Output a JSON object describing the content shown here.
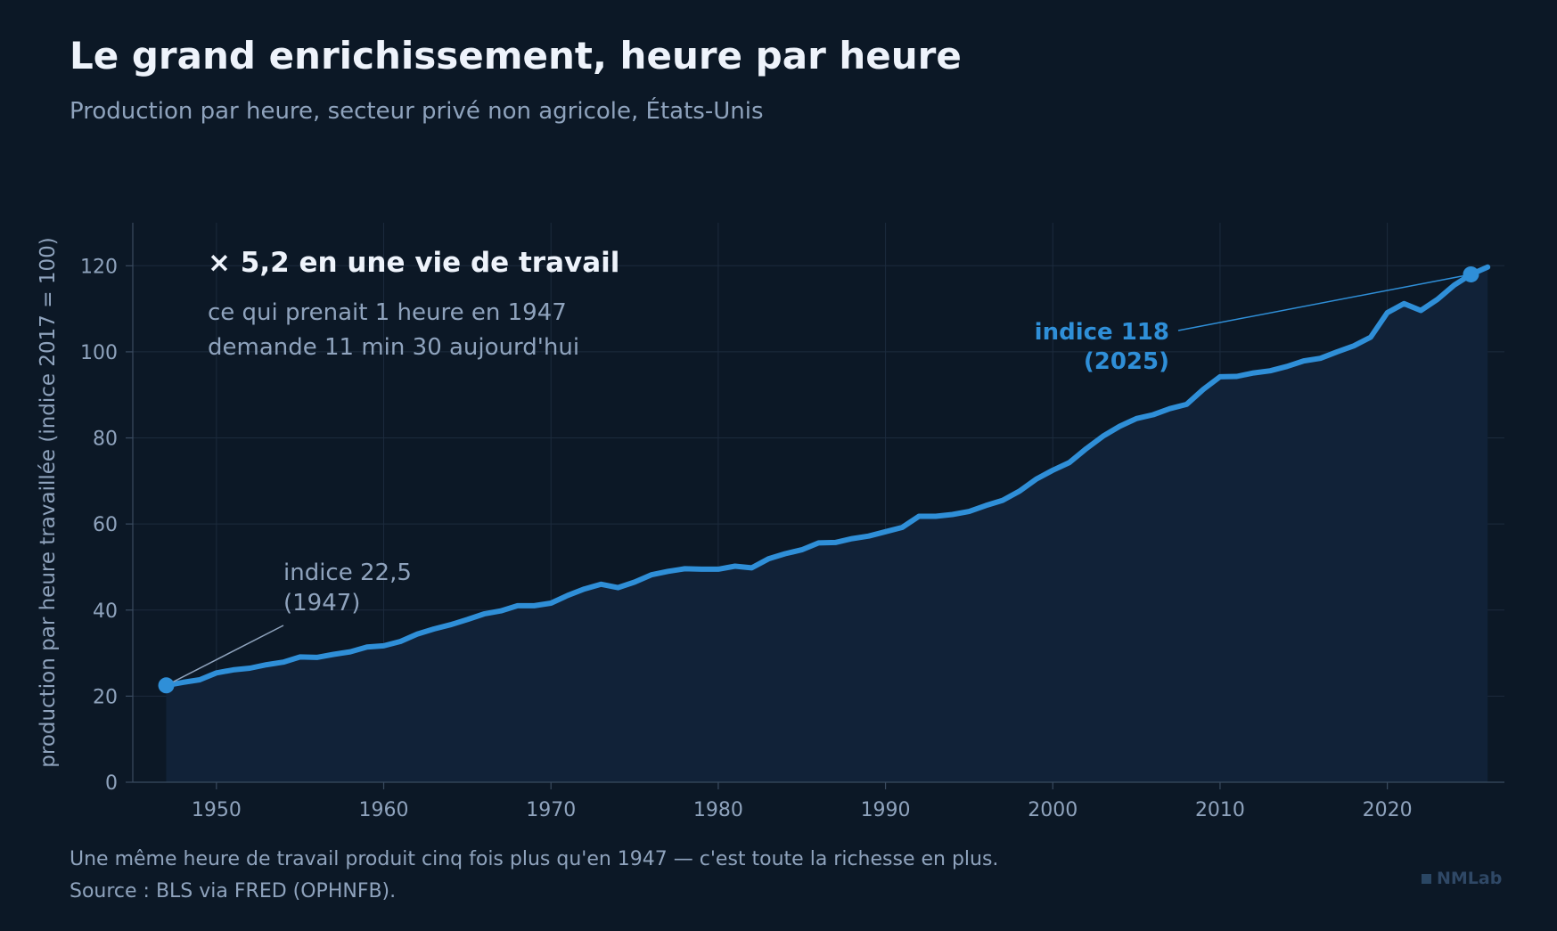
{
  "title": "Le grand enrichissement, heure par heure",
  "subtitle": "Production par heure, secteur privé non agricole, États-Unis",
  "notes": {
    "line1": "Une même heure de travail produit cinq fois plus qu'en 1947 — c'est toute la richesse en plus.",
    "line2": "Source : BLS via FRED (OPHNFB)."
  },
  "brand": "NMLab",
  "colors": {
    "background": "#0c1826",
    "line": "#2f8fd8",
    "area": "#112238",
    "grid": "#1c2b3d",
    "text_muted": "#8fa3bd",
    "text_bright": "#eef3fb"
  },
  "chart_data": {
    "type": "area",
    "ylabel": "production par heure travaillée (indice 2017 = 100)",
    "xlim": [
      1945,
      2027
    ],
    "ylim": [
      0,
      130
    ],
    "xticks": [
      1950,
      1960,
      1970,
      1980,
      1990,
      2000,
      2010,
      2020
    ],
    "yticks": [
      0,
      20,
      40,
      60,
      80,
      100,
      120
    ],
    "grid": true,
    "x": [
      1947,
      1948,
      1949,
      1950,
      1951,
      1952,
      1953,
      1954,
      1955,
      1956,
      1957,
      1958,
      1959,
      1960,
      1961,
      1962,
      1963,
      1964,
      1965,
      1966,
      1967,
      1968,
      1969,
      1970,
      1971,
      1972,
      1973,
      1974,
      1975,
      1976,
      1977,
      1978,
      1979,
      1980,
      1981,
      1982,
      1983,
      1984,
      1985,
      1986,
      1987,
      1988,
      1989,
      1990,
      1991,
      1992,
      1993,
      1994,
      1995,
      1996,
      1997,
      1998,
      1999,
      2000,
      2001,
      2002,
      2003,
      2004,
      2005,
      2006,
      2007,
      2008,
      2009,
      2010,
      2011,
      2012,
      2013,
      2014,
      2015,
      2016,
      2017,
      2018,
      2019,
      2020,
      2021,
      2022,
      2023,
      2024,
      2025,
      2026
    ],
    "values": [
      22.5,
      23.2,
      23.8,
      25.4,
      26.1,
      26.5,
      27.3,
      27.9,
      29.1,
      29.0,
      29.7,
      30.3,
      31.4,
      31.7,
      32.7,
      34.4,
      35.6,
      36.6,
      37.8,
      39.1,
      39.8,
      41.0,
      41.0,
      41.6,
      43.4,
      44.9,
      46.0,
      45.2,
      46.5,
      48.2,
      49.0,
      49.6,
      49.5,
      49.5,
      50.2,
      49.8,
      51.9,
      53.1,
      54.0,
      55.6,
      55.7,
      56.6,
      57.2,
      58.2,
      59.2,
      61.8,
      61.8,
      62.2,
      62.9,
      64.3,
      65.5,
      67.6,
      70.4,
      72.5,
      74.3,
      77.5,
      80.4,
      82.7,
      84.5,
      85.4,
      86.8,
      87.8,
      91.3,
      94.2,
      94.3,
      95.1,
      95.6,
      96.6,
      97.9,
      98.5,
      100.0,
      101.4,
      103.4,
      109.1,
      111.2,
      109.6,
      112.2,
      115.5,
      118.0,
      119.7
    ],
    "annotations": [
      {
        "text": "× 5,2 en une vie de travail",
        "style": "headline"
      },
      {
        "text": "ce qui prenait 1 heure en 1947",
        "style": "body"
      },
      {
        "text": "demande 11 min 30 aujourd'hui",
        "style": "body"
      },
      {
        "label": [
          "indice 22,5",
          "(1947)"
        ],
        "x": 1947,
        "y": 22.5
      },
      {
        "label": [
          "indice 118",
          "(2025)"
        ],
        "x": 2025,
        "y": 118
      }
    ]
  }
}
